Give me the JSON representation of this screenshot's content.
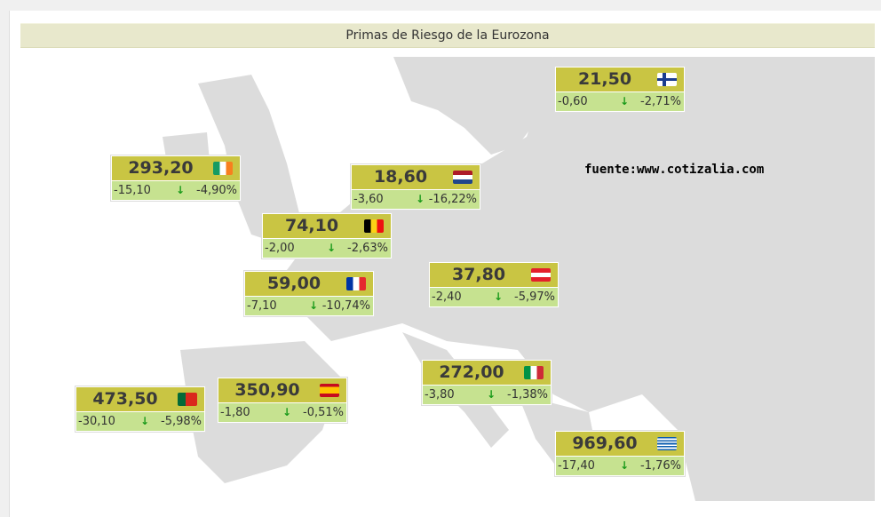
{
  "title": "Primas de Riesgo de la Eurozona",
  "source": "fuente:www.cotizalia.com",
  "countries": [
    {
      "country": "Finland",
      "value": "21,50",
      "change": "-0,60",
      "pct": "-2,71%",
      "flag": "finland"
    },
    {
      "country": "Ireland",
      "value": "293,20",
      "change": "-15,10",
      "pct": "-4,90%",
      "flag": "ireland"
    },
    {
      "country": "Netherlands",
      "value": "18,60",
      "change": "-3,60",
      "pct": "-16,22%",
      "flag": "netherlands"
    },
    {
      "country": "Belgium",
      "value": "74,10",
      "change": "-2,00",
      "pct": "-2,63%",
      "flag": "belgium"
    },
    {
      "country": "France",
      "value": "59,00",
      "change": "-7,10",
      "pct": "-10,74%",
      "flag": "france"
    },
    {
      "country": "Austria",
      "value": "37,80",
      "change": "-2,40",
      "pct": "-5,97%",
      "flag": "austria"
    },
    {
      "country": "Italy",
      "value": "272,00",
      "change": "-3,80",
      "pct": "-1,38%",
      "flag": "italy"
    },
    {
      "country": "Spain",
      "value": "350,90",
      "change": "-1,80",
      "pct": "-0,51%",
      "flag": "spain"
    },
    {
      "country": "Portugal",
      "value": "473,50",
      "change": "-30,10",
      "pct": "-5,98%",
      "flag": "portugal"
    },
    {
      "country": "Greece",
      "value": "969,60",
      "change": "-17,40",
      "pct": "-1,76%",
      "flag": "greece"
    }
  ]
}
